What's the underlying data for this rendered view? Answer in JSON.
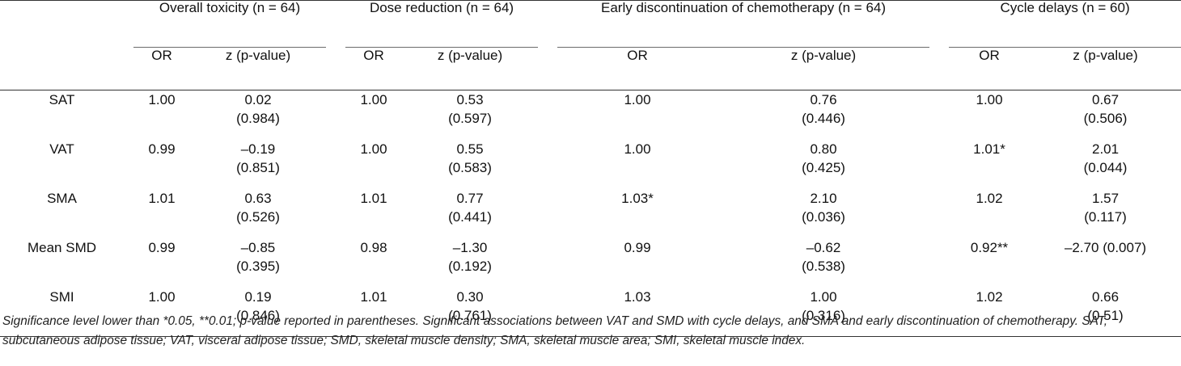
{
  "table": {
    "groups": [
      {
        "label": "Overall toxicity (n = 64)"
      },
      {
        "label": "Dose reduction (n = 64)"
      },
      {
        "label": "Early discontinuation of chemotherapy (n = 64)"
      },
      {
        "label": "Cycle delays (n = 60)"
      }
    ],
    "subheaders": [
      "OR",
      "z (p-value)"
    ],
    "rows": [
      {
        "label": "SAT",
        "cells": [
          {
            "or": "1.00",
            "z": "0.02",
            "p": "(0.984)"
          },
          {
            "or": "1.00",
            "z": "0.53",
            "p": "(0.597)"
          },
          {
            "or": "1.00",
            "z": "0.76",
            "p": "(0.446)"
          },
          {
            "or": "1.00",
            "z": "0.67",
            "p": "(0.506)"
          }
        ]
      },
      {
        "label": "VAT",
        "cells": [
          {
            "or": "0.99",
            "z": "–0.19",
            "p": "(0.851)"
          },
          {
            "or": "1.00",
            "z": "0.55",
            "p": "(0.583)"
          },
          {
            "or": "1.00",
            "z": "0.80",
            "p": "(0.425)"
          },
          {
            "or": "1.01*",
            "z": "2.01",
            "p": "(0.044)"
          }
        ]
      },
      {
        "label": "SMA",
        "cells": [
          {
            "or": "1.01",
            "z": "0.63",
            "p": "(0.526)"
          },
          {
            "or": "1.01",
            "z": "0.77",
            "p": "(0.441)"
          },
          {
            "or": "1.03*",
            "z": "2.10",
            "p": "(0.036)"
          },
          {
            "or": "1.02",
            "z": "1.57",
            "p": "(0.117)"
          }
        ]
      },
      {
        "label": "Mean SMD",
        "cells": [
          {
            "or": "0.99",
            "z": "–0.85",
            "p": "(0.395)"
          },
          {
            "or": "0.98",
            "z": "–1.30",
            "p": "(0.192)"
          },
          {
            "or": "0.99",
            "z": "–0.62",
            "p": "(0.538)"
          },
          {
            "or": "0.92**",
            "z": "–2.70 (0.007)",
            "p": ""
          }
        ]
      },
      {
        "label": "SMI",
        "cells": [
          {
            "or": "1.00",
            "z": "0.19",
            "p": "(0.846)"
          },
          {
            "or": "1.01",
            "z": "0.30",
            "p": "(0.761)"
          },
          {
            "or": "1.03",
            "z": "1.00",
            "p": "(0.316)"
          },
          {
            "or": "1.02",
            "z": "0.66",
            "p": "(0.51)"
          }
        ]
      }
    ]
  },
  "footnote": "Significance level lower than *0.05, **0.01; p-value reported in parentheses. Significant associations between VAT and SMD with cycle delays, and SMA and early discontinuation of chemotherapy. SAT, subcutaneous adipose tissue; VAT, visceral adipose tissue; SMD, skeletal muscle density; SMA, skeletal muscle area; SMI, skeletal muscle index."
}
